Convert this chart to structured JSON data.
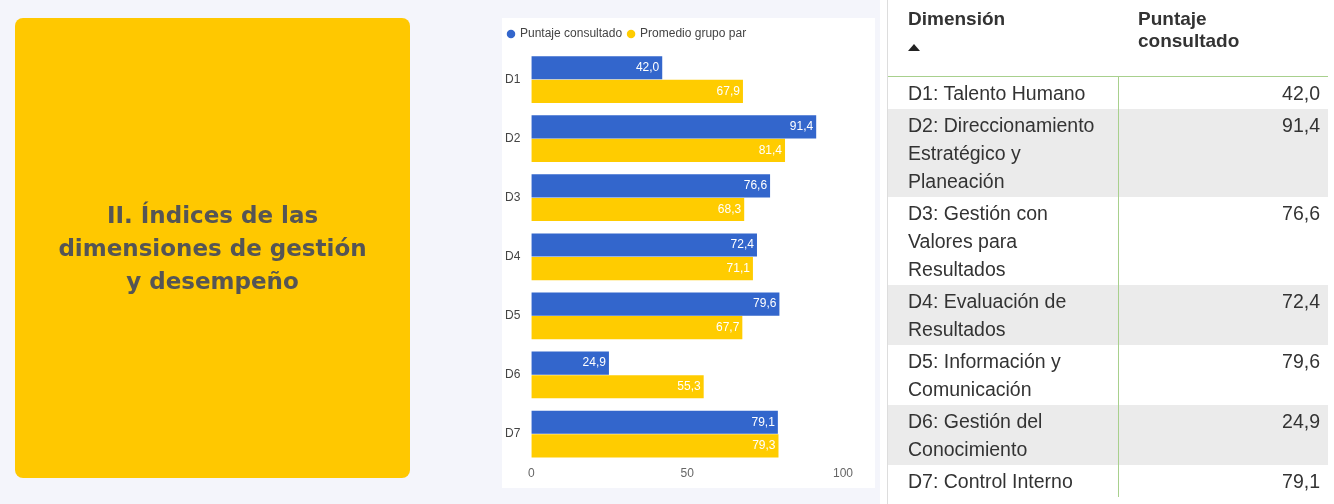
{
  "chart_data": [
    {
      "type": "other",
      "title": "II. Índices de las dimensiones de gestión y desempeño",
      "color": "#ffc800"
    },
    {
      "type": "bar",
      "orientation": "horizontal",
      "categories": [
        "D1",
        "D2",
        "D3",
        "D4",
        "D5",
        "D6",
        "D7"
      ],
      "series": [
        {
          "name": "Puntaje consultado",
          "color": "#3366cc",
          "values": [
            42.0,
            91.4,
            76.6,
            72.4,
            79.6,
            24.9,
            79.1
          ],
          "value_labels": [
            "42,0",
            "91,4",
            "76,6",
            "72,4",
            "79,6",
            "24,9",
            "79,1"
          ]
        },
        {
          "name": "Promedio grupo par",
          "color": "#ffcc00",
          "values": [
            67.9,
            81.4,
            68.3,
            71.1,
            67.7,
            55.3,
            79.3
          ],
          "value_labels": [
            "67,9",
            "81,4",
            "68,3",
            "71,1",
            "67,7",
            "55,3",
            "79,3"
          ]
        }
      ],
      "xlim": [
        0,
        100
      ],
      "xticks": [
        0,
        50,
        100
      ],
      "grid": false,
      "legend": "top left"
    },
    {
      "type": "other",
      "annotations": [
        "Dimensión",
        "Puntaje consultado"
      ],
      "categories": [
        "D1: Talento Humano",
        "D2: Direccionamiento Estratégico y Planeación",
        "D3: Gestión con Valores para Resultados",
        "D4: Evaluación de Resultados",
        "D5: Información y Comunicación",
        "D6: Gestión del Conocimiento",
        "D7: Control Interno"
      ],
      "value_labels": [
        "42,0",
        "91,4",
        "76,6",
        "72,4",
        "79,6",
        "24,9",
        "79,1"
      ]
    }
  ]
}
